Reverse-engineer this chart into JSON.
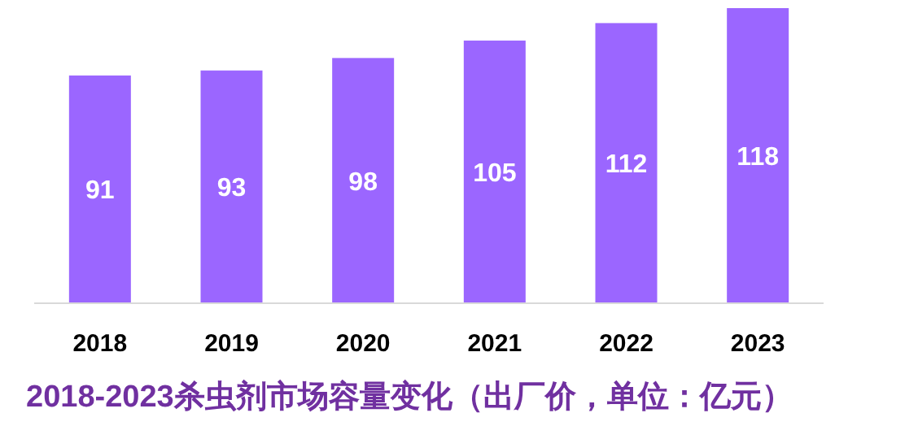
{
  "chart_data": {
    "type": "bar",
    "title": "2018-2023杀虫剂市场容量变化（出厂价，单位：亿元）",
    "categories": [
      "2018",
      "2019",
      "2020",
      "2021",
      "2022",
      "2023"
    ],
    "values": [
      91,
      93,
      98,
      105,
      112,
      118
    ],
    "color": "#9b66ff",
    "data_labels": true
  }
}
